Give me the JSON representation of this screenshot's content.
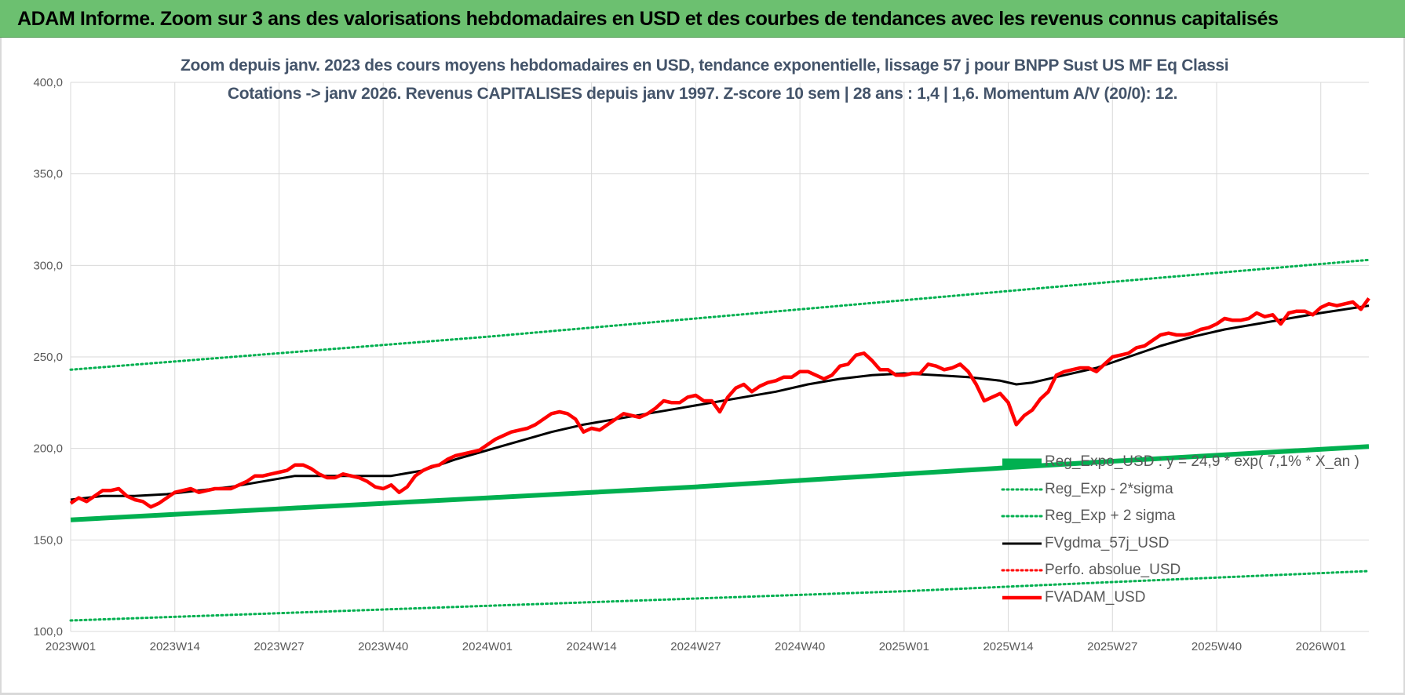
{
  "banner": {
    "title": "ADAM Informe. Zoom sur 3 ans des valorisations hebdomadaires en USD et des courbes de tendances avec les revenus connus capitalisés"
  },
  "chart_data": {
    "type": "line",
    "title_line1": "Zoom depuis janv. 2023 des cours moyens hebdomadaires en USD, tendance exponentielle, lissage 57 j pour BNPP Sust US MF Eq Classi",
    "title_line2": "Cotations -> janv 2026. Revenus CAPITALISES depuis janv 1997. Z-score 10 sem | 28 ans : 1,4 | 1,6. Momentum A/V (20/0): 12.",
    "x_unit": "weeks since 2023W01",
    "x_range": [
      0,
      162
    ],
    "x_tick_labels": [
      "2023W01",
      "2023W14",
      "2023W27",
      "2023W40",
      "2024W01",
      "2024W14",
      "2024W27",
      "2024W40",
      "2025W01",
      "2025W14",
      "2025W27",
      "2025W40",
      "2026W01"
    ],
    "x_tick_positions": [
      0,
      13,
      26,
      39,
      52,
      65,
      78,
      91,
      104,
      117,
      130,
      143,
      156
    ],
    "y_range": [
      100,
      400
    ],
    "y_ticks": [
      100,
      150,
      200,
      250,
      300,
      350,
      400
    ],
    "y_tick_labels": [
      "100,0",
      "150,0",
      "200,0",
      "250,0",
      "300,0",
      "350,0",
      "400,0"
    ],
    "grid": true,
    "legend_position": "bottom-right",
    "series": [
      {
        "name": "Reg_Expo_USD : y = 24,9 * exp( 7,1% *  X_an )",
        "style": "thick-solid",
        "color": "#00b050",
        "x": [
          0,
          26,
          52,
          78,
          104,
          130,
          162
        ],
        "y": [
          161,
          167,
          173,
          179,
          186,
          193,
          201
        ]
      },
      {
        "name": "Reg_Exp - 2*sigma",
        "style": "dotted",
        "color": "#00b050",
        "x": [
          0,
          26,
          52,
          78,
          104,
          130,
          162
        ],
        "y": [
          106,
          110,
          114,
          118,
          122,
          127,
          133
        ]
      },
      {
        "name": "Reg_Exp + 2 sigma",
        "style": "dotted",
        "color": "#00b050",
        "x": [
          0,
          26,
          52,
          78,
          104,
          130,
          162
        ],
        "y": [
          243,
          252,
          261,
          271,
          281,
          291,
          303
        ]
      },
      {
        "name": "FVgdma_57j_USD",
        "style": "solid",
        "color": "#000000",
        "x": [
          0,
          4,
          8,
          12,
          16,
          20,
          24,
          28,
          32,
          36,
          40,
          44,
          48,
          52,
          56,
          60,
          64,
          68,
          72,
          76,
          80,
          84,
          88,
          92,
          96,
          100,
          104,
          108,
          112,
          116,
          118,
          120,
          124,
          128,
          132,
          136,
          140,
          144,
          148,
          152,
          156,
          162
        ],
        "y": [
          172,
          174,
          174,
          175,
          177,
          179,
          182,
          185,
          185,
          185,
          185,
          188,
          194,
          199,
          204,
          209,
          213,
          216,
          219,
          222,
          225,
          228,
          231,
          235,
          238,
          240,
          241,
          240,
          239,
          237,
          235,
          236,
          240,
          244,
          250,
          256,
          261,
          265,
          268,
          271,
          274,
          278
        ]
      },
      {
        "name": "Perfo. absolue_USD",
        "style": "dotted",
        "color": "#ff0000",
        "x": [],
        "y": []
      },
      {
        "name": "FVADAM_USD",
        "style": "thick-solid",
        "color": "#ff0000",
        "x": [
          0,
          1,
          2,
          3,
          4,
          5,
          6,
          7,
          8,
          9,
          10,
          11,
          12,
          13,
          14,
          15,
          16,
          17,
          18,
          19,
          20,
          21,
          22,
          23,
          24,
          25,
          26,
          27,
          28,
          29,
          30,
          31,
          32,
          33,
          34,
          35,
          36,
          37,
          38,
          39,
          40,
          41,
          42,
          43,
          44,
          45,
          46,
          47,
          48,
          49,
          50,
          51,
          52,
          53,
          54,
          55,
          56,
          57,
          58,
          59,
          60,
          61,
          62,
          63,
          64,
          65,
          66,
          67,
          68,
          69,
          70,
          71,
          72,
          73,
          74,
          75,
          76,
          77,
          78,
          79,
          80,
          81,
          82,
          83,
          84,
          85,
          86,
          87,
          88,
          89,
          90,
          91,
          92,
          93,
          94,
          95,
          96,
          97,
          98,
          99,
          100,
          101,
          102,
          103,
          104,
          105,
          106,
          107,
          108,
          109,
          110,
          111,
          112,
          113,
          114,
          115,
          116,
          117,
          118,
          119,
          120,
          121,
          122,
          123,
          124,
          125,
          126,
          127,
          128,
          129,
          130,
          131,
          132,
          133,
          134,
          135,
          136,
          137,
          138,
          139,
          140,
          141,
          142,
          143,
          144,
          145,
          146,
          147,
          148,
          149,
          150,
          151,
          152,
          153,
          154,
          155,
          156,
          157,
          158,
          159,
          160,
          161,
          162
        ],
        "y": [
          170,
          173,
          171,
          174,
          177,
          177,
          178,
          174,
          172,
          171,
          168,
          170,
          173,
          176,
          177,
          178,
          176,
          177,
          178,
          178,
          178,
          180,
          182,
          185,
          185,
          186,
          187,
          188,
          191,
          191,
          189,
          186,
          184,
          184,
          186,
          185,
          184,
          182,
          179,
          178,
          180,
          176,
          179,
          185,
          188,
          190,
          191,
          194,
          196,
          197,
          198,
          199,
          202,
          205,
          207,
          209,
          210,
          211,
          213,
          216,
          219,
          220,
          219,
          216,
          209,
          211,
          210,
          213,
          216,
          219,
          218,
          217,
          219,
          222,
          226,
          225,
          225,
          228,
          229,
          226,
          226,
          220,
          228,
          233,
          235,
          231,
          234,
          236,
          237,
          239,
          239,
          242,
          242,
          240,
          238,
          240,
          245,
          246,
          251,
          252,
          248,
          243,
          243,
          240,
          240,
          241,
          241,
          246,
          245,
          243,
          244,
          246,
          242,
          235,
          226,
          228,
          230,
          225,
          213,
          218,
          221,
          227,
          231,
          240,
          242,
          243,
          244,
          244,
          242,
          246,
          250,
          251,
          252,
          255,
          256,
          259,
          262,
          263,
          262,
          262,
          263,
          265,
          266,
          268,
          271,
          270,
          270,
          271,
          274,
          272,
          273,
          268,
          274,
          275,
          275,
          273,
          277,
          279,
          278,
          279,
          280,
          276,
          282
        ]
      }
    ]
  }
}
